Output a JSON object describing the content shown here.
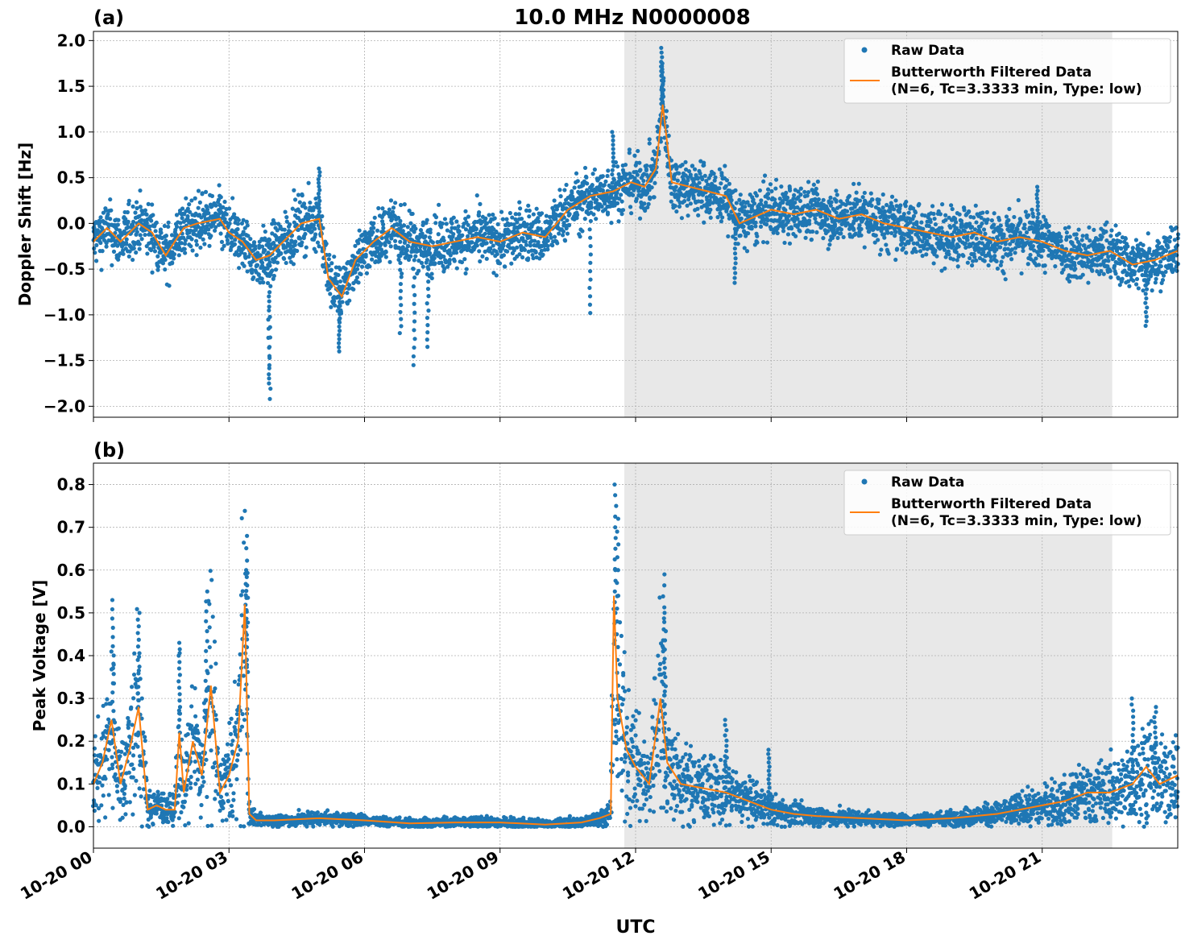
{
  "figure": {
    "title": "10.0 MHz N0000008",
    "xlabel": "UTC",
    "x_ticks": [
      "10-20 00",
      "10-20 03",
      "10-20 06",
      "10-20 09",
      "10-20 12",
      "10-20 15",
      "10-20 18",
      "10-20 21"
    ],
    "colors": {
      "raw": "#1f77b4",
      "filtered": "#ff7f0e",
      "shade": "#e8e8e8",
      "grid": "#b0b0b0"
    }
  },
  "chart_data": [
    {
      "type": "scatter",
      "panel_label": "(a)",
      "ylabel": "Doppler Shift [Hz]",
      "xlim_hours": [
        0,
        24
      ],
      "ylim": [
        -2.12,
        2.1
      ],
      "y_ticks": [
        "2.0",
        "1.5",
        "1.0",
        "0.5",
        "0.0",
        "−0.5",
        "−1.0",
        "−1.5",
        "−2.0"
      ],
      "y_tick_values": [
        2.0,
        1.5,
        1.0,
        0.5,
        0.0,
        -0.5,
        -1.0,
        -1.5,
        -2.0
      ],
      "shaded_region_hours": [
        11.75,
        22.55
      ],
      "grid": true,
      "legend": {
        "placement": "top-right",
        "entries": [
          {
            "label": "Raw Data"
          },
          {
            "label": "Butterworth Filtered Data",
            "label2": "(N=6, Tc=3.3333 min, Type: low)"
          }
        ]
      },
      "series": [
        {
          "name": "Butterworth Filtered Data",
          "style": "line",
          "x_hours": [
            0,
            0.3,
            0.6,
            1.0,
            1.3,
            1.6,
            2.0,
            2.3,
            2.8,
            3.0,
            3.3,
            3.6,
            3.9,
            4.2,
            4.6,
            5.0,
            5.2,
            5.5,
            5.8,
            6.2,
            6.6,
            7.0,
            7.5,
            8.0,
            8.5,
            9.0,
            9.5,
            10.0,
            10.5,
            11.0,
            11.5,
            11.9,
            12.2,
            12.45,
            12.6,
            12.8,
            13.2,
            13.6,
            14.0,
            14.3,
            15.0,
            15.5,
            16.0,
            16.5,
            17.0,
            17.5,
            18.0,
            18.5,
            19.0,
            19.5,
            20.0,
            20.5,
            21.0,
            21.5,
            22.0,
            22.5,
            23.0,
            23.5,
            24.0
          ],
          "y": [
            -0.2,
            -0.05,
            -0.2,
            0.0,
            -0.1,
            -0.35,
            -0.05,
            0.0,
            0.05,
            -0.1,
            -0.2,
            -0.4,
            -0.35,
            -0.2,
            0.0,
            0.05,
            -0.6,
            -0.8,
            -0.4,
            -0.2,
            -0.05,
            -0.2,
            -0.25,
            -0.2,
            -0.15,
            -0.2,
            -0.1,
            -0.15,
            0.15,
            0.3,
            0.35,
            0.45,
            0.4,
            0.6,
            1.3,
            0.45,
            0.4,
            0.35,
            0.3,
            0.0,
            0.15,
            0.1,
            0.15,
            0.05,
            0.1,
            0.0,
            -0.05,
            -0.1,
            -0.15,
            -0.1,
            -0.2,
            -0.15,
            -0.2,
            -0.3,
            -0.35,
            -0.3,
            -0.45,
            -0.4,
            -0.3
          ]
        },
        {
          "name": "Raw Data",
          "style": "points",
          "spread": 0.25,
          "spikes": [
            {
              "x_hours": 3.9,
              "y": -1.92
            },
            {
              "x_hours": 3.88,
              "y": -1.75
            },
            {
              "x_hours": 5.45,
              "y": -1.4
            },
            {
              "x_hours": 7.1,
              "y": -1.55
            },
            {
              "x_hours": 7.4,
              "y": -1.35
            },
            {
              "x_hours": 6.8,
              "y": -1.2
            },
            {
              "x_hours": 5.0,
              "y": 0.6
            },
            {
              "x_hours": 11.0,
              "y": -0.98
            },
            {
              "x_hours": 12.58,
              "y": 1.92
            },
            {
              "x_hours": 12.6,
              "y": 1.75
            },
            {
              "x_hours": 11.5,
              "y": 1.0
            },
            {
              "x_hours": 14.2,
              "y": -0.65
            },
            {
              "x_hours": 20.9,
              "y": 0.4
            },
            {
              "x_hours": 23.3,
              "y": -1.12
            }
          ]
        }
      ]
    },
    {
      "type": "scatter",
      "panel_label": "(b)",
      "ylabel": "Peak Voltage [V]",
      "xlim_hours": [
        0,
        24
      ],
      "ylim": [
        -0.05,
        0.85
      ],
      "y_ticks": [
        "0.8",
        "0.7",
        "0.6",
        "0.5",
        "0.4",
        "0.3",
        "0.2",
        "0.1",
        "0.0"
      ],
      "y_tick_values": [
        0.8,
        0.7,
        0.6,
        0.5,
        0.4,
        0.3,
        0.2,
        0.1,
        0.0
      ],
      "shaded_region_hours": [
        11.75,
        22.55
      ],
      "grid": true,
      "legend": {
        "placement": "top-right",
        "entries": [
          {
            "label": "Raw Data"
          },
          {
            "label": "Butterworth Filtered Data",
            "label2": "(N=6, Tc=3.3333 min, Type: low)"
          }
        ]
      },
      "series": [
        {
          "name": "Butterworth Filtered Data",
          "style": "line",
          "x_hours": [
            0,
            0.2,
            0.4,
            0.6,
            0.8,
            1.0,
            1.2,
            1.4,
            1.6,
            1.8,
            1.9,
            2.0,
            2.2,
            2.4,
            2.6,
            2.8,
            3.0,
            3.2,
            3.35,
            3.45,
            3.6,
            4.0,
            5.0,
            6.0,
            7.0,
            8.0,
            9.0,
            10.0,
            10.8,
            11.2,
            11.45,
            11.52,
            11.6,
            11.8,
            12.0,
            12.3,
            12.55,
            12.7,
            13.0,
            13.5,
            14.0,
            14.5,
            15.0,
            15.5,
            16.0,
            17.0,
            18.0,
            19.0,
            20.0,
            20.5,
            21.0,
            21.5,
            22.0,
            22.5,
            23.0,
            23.3,
            23.6,
            24.0
          ],
          "y": [
            0.1,
            0.15,
            0.25,
            0.1,
            0.18,
            0.28,
            0.04,
            0.05,
            0.04,
            0.04,
            0.22,
            0.08,
            0.2,
            0.12,
            0.33,
            0.08,
            0.12,
            0.2,
            0.52,
            0.03,
            0.015,
            0.015,
            0.02,
            0.015,
            0.008,
            0.01,
            0.01,
            0.005,
            0.01,
            0.02,
            0.03,
            0.54,
            0.3,
            0.18,
            0.14,
            0.1,
            0.3,
            0.15,
            0.1,
            0.09,
            0.08,
            0.06,
            0.04,
            0.03,
            0.025,
            0.02,
            0.015,
            0.02,
            0.03,
            0.04,
            0.05,
            0.06,
            0.08,
            0.08,
            0.1,
            0.14,
            0.1,
            0.12
          ]
        },
        {
          "name": "Raw Data",
          "style": "points",
          "spread": "proportional",
          "spikes": [
            {
              "x_hours": 3.4,
              "y": 0.68
            },
            {
              "x_hours": 3.38,
              "y": 0.6
            },
            {
              "x_hours": 0.43,
              "y": 0.53
            },
            {
              "x_hours": 1.0,
              "y": 0.5
            },
            {
              "x_hours": 2.5,
              "y": 0.55
            },
            {
              "x_hours": 1.9,
              "y": 0.43
            },
            {
              "x_hours": 11.55,
              "y": 0.8
            },
            {
              "x_hours": 11.6,
              "y": 0.72
            },
            {
              "x_hours": 12.62,
              "y": 0.59
            },
            {
              "x_hours": 12.65,
              "y": 0.5
            },
            {
              "x_hours": 14.0,
              "y": 0.25
            },
            {
              "x_hours": 14.95,
              "y": 0.18
            },
            {
              "x_hours": 23.0,
              "y": 0.3
            },
            {
              "x_hours": 23.5,
              "y": 0.28
            }
          ]
        }
      ]
    }
  ]
}
